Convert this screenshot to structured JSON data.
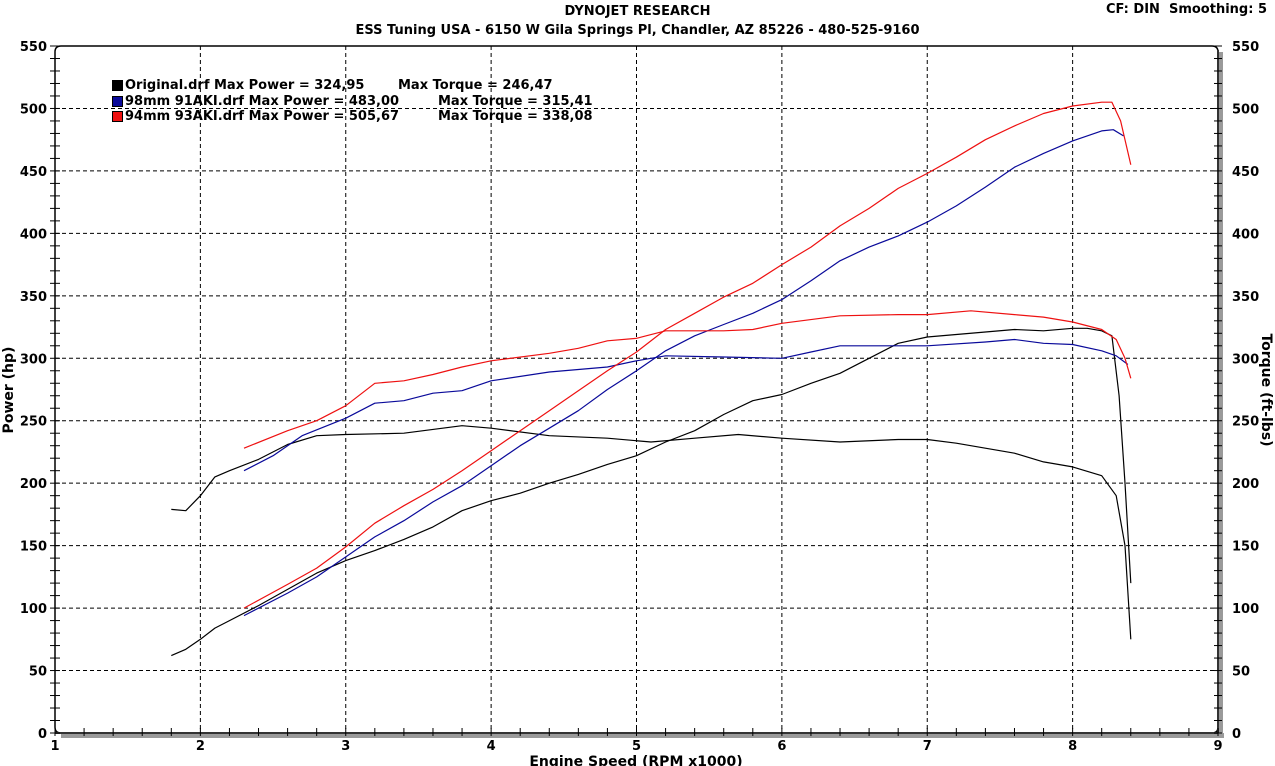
{
  "header": {
    "title": "DYNOJET RESEARCH",
    "subtitle": "ESS Tuning USA - 6150 W Gila Springs Pl, Chandler, AZ 85226 - 480-525-9160",
    "cf_info": "CF: DIN  Smoothing: 5"
  },
  "legend": [
    {
      "label": "Original.drf Max Power = 324,95",
      "torque": "Max Torque = 246,47",
      "color": "#000000"
    },
    {
      "label": "98mm 91AKI.drf Max Power = 483,00",
      "torque": "Max Torque = 315,41",
      "color": "#0a0a9a"
    },
    {
      "label": "94mm 93AKI.drf Max Power = 505,67",
      "torque": "Max Torque = 338,08",
      "color": "#ee1111"
    }
  ],
  "chart_data": {
    "type": "line",
    "title": "DYNOJET RESEARCH",
    "subtitle": "ESS Tuning USA - 6150 W Gila Springs Pl, Chandler, AZ 85226 - 480-525-9160",
    "xlabel": "Engine Speed (RPM x1000)",
    "ylabel": "Power (hp)",
    "y2label": "Torque (ft-lbs)",
    "xlim": [
      1,
      9
    ],
    "ylim": [
      0,
      550
    ],
    "y2lim": [
      0,
      550
    ],
    "x_ticks": [
      1,
      2,
      3,
      4,
      5,
      6,
      7,
      8,
      9
    ],
    "y_ticks": [
      0,
      50,
      100,
      150,
      200,
      250,
      300,
      350,
      400,
      450,
      500,
      550
    ],
    "grid": true,
    "legend_position": "top-left",
    "series": [
      {
        "name": "Original.drf Power",
        "axis": "left",
        "color": "#000000",
        "points": [
          [
            1.8,
            62
          ],
          [
            1.9,
            67
          ],
          [
            2.0,
            75
          ],
          [
            2.1,
            84
          ],
          [
            2.2,
            90
          ],
          [
            2.4,
            102
          ],
          [
            2.6,
            115
          ],
          [
            2.8,
            128
          ],
          [
            3.0,
            138
          ],
          [
            3.2,
            146
          ],
          [
            3.4,
            155
          ],
          [
            3.6,
            165
          ],
          [
            3.8,
            178
          ],
          [
            4.0,
            186
          ],
          [
            4.2,
            192
          ],
          [
            4.4,
            200
          ],
          [
            4.6,
            207
          ],
          [
            4.8,
            215
          ],
          [
            5.0,
            222
          ],
          [
            5.2,
            233
          ],
          [
            5.4,
            242
          ],
          [
            5.6,
            255
          ],
          [
            5.8,
            266
          ],
          [
            6.0,
            271
          ],
          [
            6.2,
            280
          ],
          [
            6.4,
            288
          ],
          [
            6.6,
            300
          ],
          [
            6.8,
            312
          ],
          [
            7.0,
            317
          ],
          [
            7.2,
            319
          ],
          [
            7.4,
            321
          ],
          [
            7.6,
            323
          ],
          [
            7.8,
            322
          ],
          [
            8.0,
            324
          ],
          [
            8.1,
            324
          ],
          [
            8.2,
            322
          ],
          [
            8.27,
            318
          ],
          [
            8.32,
            270
          ],
          [
            8.36,
            200
          ],
          [
            8.4,
            120
          ]
        ]
      },
      {
        "name": "Original.drf Torque",
        "axis": "right",
        "color": "#000000",
        "points": [
          [
            1.8,
            179
          ],
          [
            1.9,
            178
          ],
          [
            2.0,
            190
          ],
          [
            2.1,
            205
          ],
          [
            2.2,
            210
          ],
          [
            2.4,
            219
          ],
          [
            2.6,
            231
          ],
          [
            2.8,
            238
          ],
          [
            3.0,
            239
          ],
          [
            3.4,
            240
          ],
          [
            3.8,
            246
          ],
          [
            4.0,
            244
          ],
          [
            4.4,
            238
          ],
          [
            4.8,
            236
          ],
          [
            5.1,
            233
          ],
          [
            5.4,
            236
          ],
          [
            5.7,
            239
          ],
          [
            6.0,
            236
          ],
          [
            6.4,
            233
          ],
          [
            6.8,
            235
          ],
          [
            7.0,
            235
          ],
          [
            7.2,
            232
          ],
          [
            7.6,
            224
          ],
          [
            7.8,
            217
          ],
          [
            8.0,
            213
          ],
          [
            8.2,
            206
          ],
          [
            8.3,
            190
          ],
          [
            8.36,
            150
          ],
          [
            8.4,
            75
          ]
        ]
      },
      {
        "name": "98mm 91AKI.drf Power",
        "axis": "left",
        "color": "#0a0a9a",
        "points": [
          [
            2.3,
            94
          ],
          [
            2.6,
            112
          ],
          [
            2.8,
            125
          ],
          [
            3.0,
            141
          ],
          [
            3.2,
            157
          ],
          [
            3.4,
            170
          ],
          [
            3.6,
            185
          ],
          [
            3.8,
            198
          ],
          [
            4.0,
            214
          ],
          [
            4.2,
            230
          ],
          [
            4.4,
            244
          ],
          [
            4.6,
            258
          ],
          [
            4.8,
            275
          ],
          [
            5.0,
            290
          ],
          [
            5.2,
            306
          ],
          [
            5.4,
            318
          ],
          [
            5.6,
            327
          ],
          [
            5.8,
            336
          ],
          [
            6.0,
            347
          ],
          [
            6.2,
            362
          ],
          [
            6.4,
            378
          ],
          [
            6.6,
            389
          ],
          [
            6.8,
            398
          ],
          [
            7.0,
            409
          ],
          [
            7.2,
            422
          ],
          [
            7.4,
            437
          ],
          [
            7.6,
            453
          ],
          [
            7.8,
            464
          ],
          [
            8.0,
            474
          ],
          [
            8.2,
            482
          ],
          [
            8.28,
            483
          ],
          [
            8.35,
            478
          ]
        ]
      },
      {
        "name": "98mm 91AKI.drf Torque",
        "axis": "right",
        "color": "#0a0a9a",
        "points": [
          [
            2.3,
            210
          ],
          [
            2.5,
            222
          ],
          [
            2.7,
            238
          ],
          [
            3.0,
            252
          ],
          [
            3.2,
            264
          ],
          [
            3.4,
            266
          ],
          [
            3.6,
            272
          ],
          [
            3.8,
            274
          ],
          [
            4.0,
            282
          ],
          [
            4.4,
            289
          ],
          [
            4.8,
            293
          ],
          [
            5.0,
            298
          ],
          [
            5.2,
            302
          ],
          [
            5.6,
            301
          ],
          [
            6.0,
            300
          ],
          [
            6.2,
            305
          ],
          [
            6.4,
            310
          ],
          [
            6.8,
            310
          ],
          [
            7.0,
            310
          ],
          [
            7.4,
            313
          ],
          [
            7.6,
            315
          ],
          [
            7.8,
            312
          ],
          [
            8.0,
            311
          ],
          [
            8.2,
            306
          ],
          [
            8.3,
            302
          ],
          [
            8.38,
            295
          ]
        ]
      },
      {
        "name": "94mm 93AKI.drf Power",
        "axis": "left",
        "color": "#ee1111",
        "points": [
          [
            2.3,
            100
          ],
          [
            2.6,
            119
          ],
          [
            2.8,
            132
          ],
          [
            3.0,
            149
          ],
          [
            3.2,
            168
          ],
          [
            3.4,
            182
          ],
          [
            3.6,
            195
          ],
          [
            3.8,
            210
          ],
          [
            4.0,
            226
          ],
          [
            4.2,
            242
          ],
          [
            4.4,
            258
          ],
          [
            4.6,
            274
          ],
          [
            4.8,
            290
          ],
          [
            5.0,
            305
          ],
          [
            5.2,
            323
          ],
          [
            5.4,
            336
          ],
          [
            5.6,
            349
          ],
          [
            5.8,
            360
          ],
          [
            6.0,
            375
          ],
          [
            6.2,
            389
          ],
          [
            6.4,
            406
          ],
          [
            6.6,
            420
          ],
          [
            6.8,
            436
          ],
          [
            7.0,
            448
          ],
          [
            7.2,
            461
          ],
          [
            7.4,
            475
          ],
          [
            7.6,
            486
          ],
          [
            7.8,
            496
          ],
          [
            8.0,
            502
          ],
          [
            8.2,
            505
          ],
          [
            8.27,
            505
          ],
          [
            8.33,
            490
          ],
          [
            8.4,
            455
          ]
        ]
      },
      {
        "name": "94mm 93AKI.drf Torque",
        "axis": "right",
        "color": "#ee1111",
        "points": [
          [
            2.3,
            228
          ],
          [
            2.6,
            242
          ],
          [
            2.8,
            250
          ],
          [
            3.0,
            262
          ],
          [
            3.2,
            280
          ],
          [
            3.4,
            282
          ],
          [
            3.6,
            287
          ],
          [
            3.8,
            293
          ],
          [
            4.0,
            298
          ],
          [
            4.4,
            304
          ],
          [
            4.6,
            308
          ],
          [
            4.8,
            314
          ],
          [
            5.0,
            316
          ],
          [
            5.2,
            322
          ],
          [
            5.6,
            322
          ],
          [
            5.8,
            323
          ],
          [
            6.0,
            328
          ],
          [
            6.4,
            334
          ],
          [
            6.8,
            335
          ],
          [
            7.0,
            335
          ],
          [
            7.3,
            338
          ],
          [
            7.6,
            335
          ],
          [
            7.8,
            333
          ],
          [
            8.0,
            329
          ],
          [
            8.2,
            323
          ],
          [
            8.3,
            315
          ],
          [
            8.36,
            300
          ],
          [
            8.4,
            284
          ]
        ]
      }
    ]
  }
}
